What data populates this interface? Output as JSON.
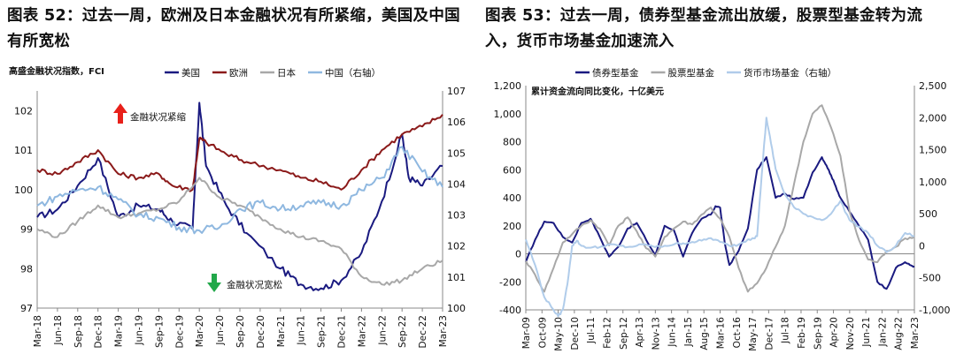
{
  "chart_data": [
    {
      "type": "line",
      "title": "图表 52：过去一周，欧洲及日本金融状况有所紧缩，美国及中国有所宽松",
      "ylabel": "高盛金融状况指数，FCI",
      "ylim": [
        97,
        102.5
      ],
      "y2lim": [
        100,
        107
      ],
      "yticks": [
        "97",
        "98",
        "99",
        "100",
        "101",
        "102"
      ],
      "y2ticks": [
        "100",
        "101",
        "102",
        "103",
        "104",
        "105",
        "106",
        "107"
      ],
      "xticks": [
        "Mar-18",
        "Jun-18",
        "Sep-18",
        "Dec-18",
        "Mar-19",
        "Jun-19",
        "Sep-19",
        "Dec-19",
        "Mar-20",
        "Jun-20",
        "Sep-20",
        "Dec-20",
        "Mar-21",
        "Jun-21",
        "Sep-21",
        "Dec-21",
        "Mar-22",
        "Jun-22",
        "Sep-22",
        "Dec-22",
        "Mar-23"
      ],
      "legend": "top",
      "annotations": [
        "金融状况紧缩",
        "金融状况宽松"
      ],
      "series": [
        {
          "name": "美国",
          "color": "#1a1a80",
          "axis": "left",
          "x": [
            0,
            3,
            6,
            9,
            12,
            15,
            18,
            20,
            23,
            24,
            25,
            28,
            31,
            36,
            39,
            42,
            45,
            48,
            51,
            54,
            55,
            57,
            60
          ],
          "values": [
            99.3,
            99.5,
            100.1,
            100.8,
            99.3,
            99.6,
            99.5,
            99.2,
            99.0,
            102.2,
            100.6,
            99.6,
            98.9,
            98.0,
            97.6,
            97.5,
            97.7,
            98.4,
            99.7,
            101.4,
            100.3,
            100.1,
            100.6
          ]
        },
        {
          "name": "欧洲",
          "color": "#8b1a1a",
          "axis": "left",
          "x": [
            0,
            3,
            6,
            9,
            12,
            15,
            18,
            20,
            23,
            24,
            25,
            28,
            31,
            36,
            39,
            42,
            45,
            48,
            51,
            54,
            57,
            60
          ],
          "values": [
            100.5,
            100.4,
            100.7,
            101.0,
            100.4,
            100.3,
            100.4,
            100.1,
            100.0,
            101.3,
            101.2,
            100.9,
            100.7,
            100.5,
            100.3,
            100.2,
            100.0,
            100.5,
            101.0,
            101.4,
            101.6,
            101.9
          ]
        },
        {
          "name": "日本",
          "color": "#a8a8a8",
          "axis": "left",
          "x": [
            0,
            3,
            6,
            9,
            12,
            15,
            18,
            21,
            24,
            27,
            30,
            33,
            36,
            39,
            42,
            45,
            48,
            51,
            54,
            57,
            60
          ],
          "values": [
            99.0,
            98.8,
            99.2,
            99.6,
            99.3,
            99.4,
            99.5,
            99.7,
            100.3,
            99.8,
            99.6,
            99.3,
            99.0,
            98.8,
            98.7,
            98.5,
            97.8,
            97.6,
            97.7,
            98.0,
            98.2
          ]
        },
        {
          "name": "中国（右轴）",
          "color": "#8fb8e0",
          "axis": "right",
          "x": [
            0,
            3,
            6,
            9,
            12,
            15,
            18,
            21,
            24,
            27,
            30,
            33,
            36,
            39,
            42,
            45,
            48,
            51,
            54,
            57,
            60
          ],
          "values": [
            103.3,
            103.6,
            103.8,
            103.9,
            103.5,
            103.0,
            102.9,
            102.6,
            102.5,
            102.6,
            103.2,
            103.4,
            103.2,
            103.3,
            103.4,
            103.3,
            103.8,
            104.2,
            105.2,
            104.4,
            103.9
          ]
        }
      ]
    },
    {
      "type": "line",
      "title": "图表 53：过去一周，债券型基金流出放缓，股票型基金转为流入，货币市场基金加速流入",
      "ylabel": "累计资金流向同比变化，十亿美元",
      "ylim": [
        -400,
        1200
      ],
      "y2lim": [
        -1000,
        2500
      ],
      "yticks": [
        "-400",
        "-200",
        "0",
        "200",
        "400",
        "600",
        "800",
        "1,000",
        "1,200"
      ],
      "y2ticks": [
        "-1,000",
        "-500",
        "0",
        "500",
        "1,000",
        "1,500",
        "2,000",
        "2,500"
      ],
      "xticks": [
        "Mar-09",
        "Oct-09",
        "May-10",
        "Dec-10",
        "Jul-11",
        "Feb-12",
        "Sep-12",
        "Apr-13",
        "Nov-13",
        "Jun-14",
        "Jan-15",
        "Aug-15",
        "Mar-16",
        "Oct-16",
        "May-17",
        "Dec-17",
        "Jul-18",
        "Feb-19",
        "Sep-19",
        "Apr-20",
        "Nov-20",
        "Jun-21",
        "Jan-22",
        "Aug-22",
        "Mar-23"
      ],
      "legend": "top",
      "series": [
        {
          "name": "债券型基金",
          "color": "#1a1a80",
          "axis": "left",
          "x": [
            0,
            4,
            8,
            12,
            16,
            20,
            24,
            28,
            32,
            36,
            40,
            44,
            48,
            52,
            56,
            60,
            64,
            68,
            72,
            76,
            80,
            82,
            84,
            86,
            88,
            92,
            96,
            100,
            104,
            108,
            112,
            116,
            120,
            124,
            128,
            130,
            132,
            134,
            136,
            140,
            144,
            148,
            152,
            156,
            160,
            164,
            166,
            168
          ],
          "values": [
            -60,
            100,
            230,
            220,
            120,
            80,
            220,
            250,
            120,
            -20,
            50,
            180,
            220,
            100,
            -10,
            200,
            170,
            -20,
            150,
            250,
            280,
            340,
            330,
            80,
            -80,
            20,
            180,
            600,
            690,
            400,
            430,
            390,
            400,
            580,
            690,
            630,
            560,
            480,
            400,
            300,
            200,
            100,
            -200,
            -250,
            -100,
            -60,
            -80,
            -90
          ]
        },
        {
          "name": "股票型基金",
          "color": "#a8a8a8",
          "axis": "left",
          "x": [
            0,
            4,
            8,
            12,
            16,
            20,
            24,
            28,
            32,
            36,
            40,
            44,
            48,
            52,
            56,
            60,
            64,
            68,
            72,
            76,
            80,
            84,
            88,
            92,
            96,
            100,
            104,
            108,
            112,
            116,
            120,
            124,
            128,
            132,
            136,
            140,
            144,
            148,
            152,
            156,
            160,
            164,
            168
          ],
          "values": [
            -50,
            -150,
            -270,
            -100,
            80,
            140,
            200,
            240,
            180,
            60,
            200,
            260,
            160,
            40,
            -20,
            120,
            180,
            230,
            210,
            280,
            330,
            250,
            120,
            -100,
            -270,
            -210,
            -100,
            50,
            200,
            500,
            800,
            1000,
            1060,
            900,
            700,
            300,
            100,
            -40,
            -60,
            20,
            50,
            110,
            120
          ]
        },
        {
          "name": "货币市场基金（右轴）",
          "color": "#b0ccea",
          "axis": "right",
          "x": [
            0,
            4,
            8,
            12,
            14,
            16,
            18,
            20,
            22,
            24,
            28,
            32,
            36,
            40,
            44,
            48,
            52,
            56,
            60,
            64,
            68,
            72,
            76,
            80,
            84,
            88,
            92,
            96,
            98,
            100,
            102,
            104,
            106,
            108,
            112,
            116,
            120,
            124,
            128,
            132,
            136,
            140,
            144,
            148,
            152,
            156,
            160,
            164,
            168
          ],
          "values": [
            100,
            -300,
            -800,
            -1000,
            -1100,
            -1000,
            -600,
            0,
            80,
            0,
            -30,
            -20,
            20,
            0,
            -20,
            0,
            20,
            -20,
            0,
            20,
            40,
            60,
            80,
            120,
            60,
            0,
            20,
            100,
            120,
            150,
            1100,
            2000,
            1600,
            1200,
            800,
            600,
            500,
            450,
            400,
            500,
            700,
            400,
            300,
            200,
            0,
            -100,
            0,
            200,
            150
          ]
        }
      ]
    }
  ]
}
